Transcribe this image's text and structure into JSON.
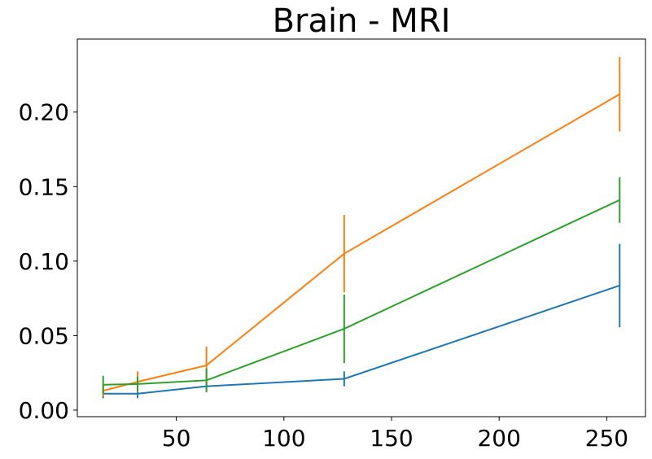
{
  "chart_data": {
    "type": "line",
    "title": "Brain - MRI",
    "x": [
      16,
      32,
      64,
      128,
      256
    ],
    "series": [
      {
        "color": "#1f77b4",
        "values": [
          0.011,
          0.011,
          0.016,
          0.021,
          0.0836
        ],
        "errors": [
          0.003,
          0.003,
          0.002,
          0.005,
          0.028
        ]
      },
      {
        "color": "#ff7f0e",
        "values": [
          0.013,
          0.019,
          0.03,
          0.105,
          0.212
        ],
        "errors": [
          0.004,
          0.007,
          0.0125,
          0.026,
          0.025
        ]
      },
      {
        "color": "#2ca02c",
        "values": [
          0.017,
          0.0175,
          0.02,
          0.0546,
          0.141
        ],
        "errors": [
          0.006,
          0.005,
          0.008,
          0.023,
          0.0153
        ]
      }
    ],
    "xlim": [
      4,
      268
    ],
    "ylim": [
      -0.0044,
      0.249
    ],
    "xticks": [
      50,
      100,
      150,
      200,
      250
    ],
    "yticks": [
      {
        "value": 0,
        "label": "0.00"
      },
      0.05,
      {
        "value": 0.1,
        "label": "0.10"
      },
      0.15,
      {
        "value": 0.2,
        "label": "0.20"
      }
    ]
  }
}
